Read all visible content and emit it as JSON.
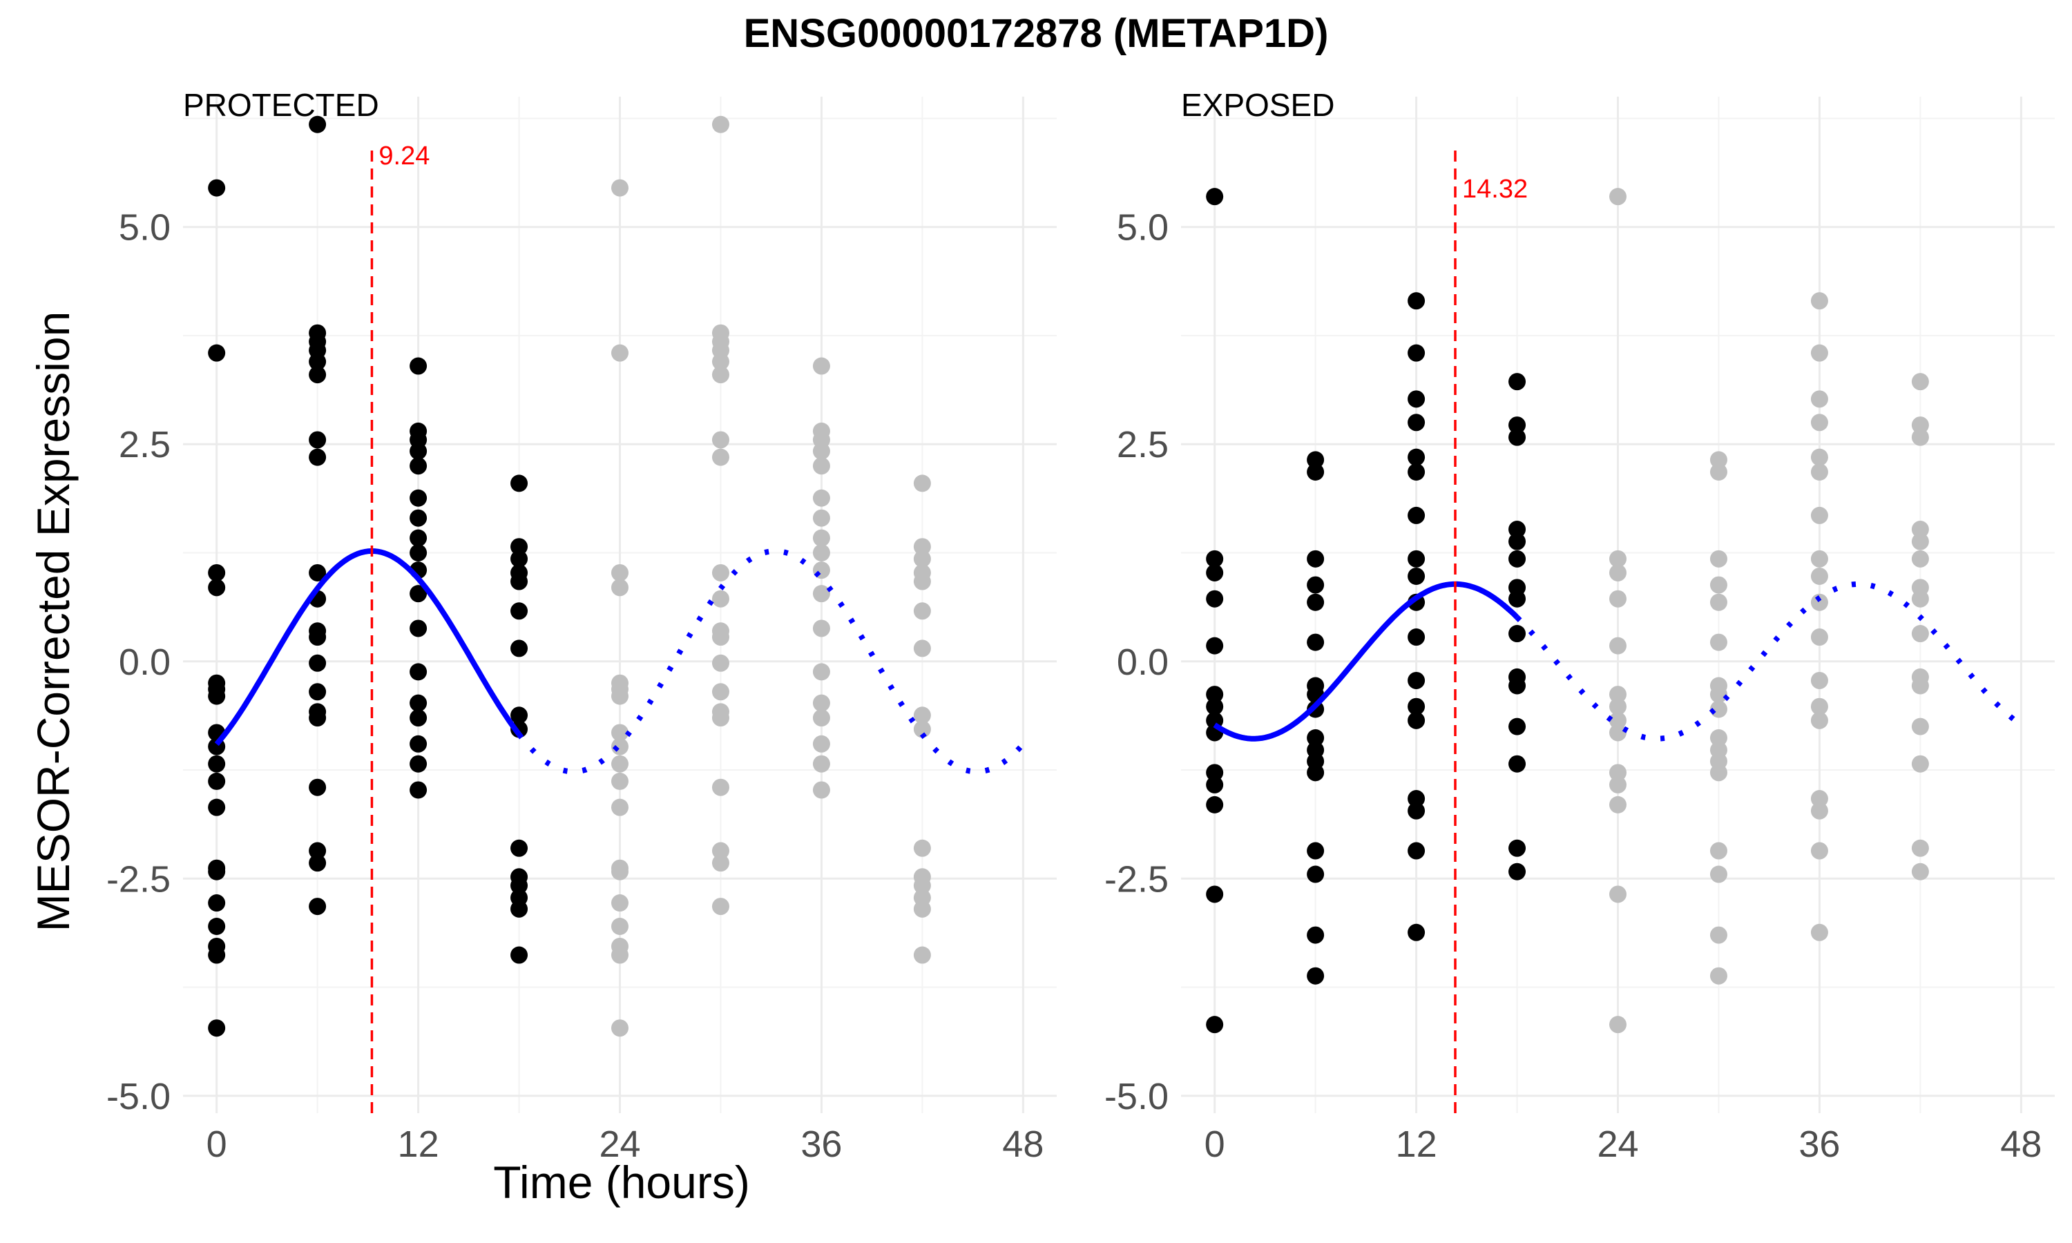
{
  "chart_data": {
    "type": "scatter",
    "title": "ENSG00000172878 (METAP1D)",
    "xlabel": "Time (hours)",
    "ylabel": "MESOR-Corrected Expression",
    "xlim": [
      -2,
      50
    ],
    "ylim": [
      -5.2,
      6.5
    ],
    "xticks": [
      0,
      12,
      24,
      36,
      48
    ],
    "xtick_labels": [
      "0",
      "12",
      "24",
      "36",
      "48"
    ],
    "yticks": [
      -5.0,
      -2.5,
      0.0,
      2.5,
      5.0
    ],
    "ytick_labels": [
      "-5.0",
      "-2.5",
      "0.0",
      "2.5",
      "5.0"
    ],
    "grid": true,
    "colors": {
      "observed_points": "#000000",
      "replicated_points": "#bebebe",
      "fit_line": "#0000ff",
      "peak_line": "#ff0000",
      "grid": "#ebebeb"
    },
    "panels": [
      {
        "name": "PROTECTED",
        "peak": 9.24,
        "peak_label": "9.24",
        "fit": {
          "mesor": 0.0,
          "amplitude": 1.27,
          "period": 24,
          "acrophase": 9.24
        },
        "points": [
          {
            "x": 0,
            "values": [
              5.45,
              3.55,
              1.02,
              0.85,
              -0.25,
              -0.32,
              -0.4,
              -0.82,
              -0.98,
              -1.18,
              -1.38,
              -1.68,
              -2.38,
              -2.42,
              -2.78,
              -3.05,
              -3.28,
              -3.38,
              -4.22
            ]
          },
          {
            "x": 6,
            "values": [
              6.18,
              3.78,
              3.68,
              3.58,
              3.45,
              3.3,
              2.55,
              2.35,
              1.02,
              0.72,
              0.35,
              0.28,
              -0.02,
              -0.35,
              -0.58,
              -0.65,
              -1.45,
              -2.18,
              -2.32,
              -2.82
            ]
          },
          {
            "x": 12,
            "values": [
              3.4,
              2.65,
              2.55,
              2.42,
              2.25,
              1.88,
              1.65,
              1.42,
              1.25,
              1.05,
              0.78,
              0.38,
              -0.12,
              -0.48,
              -0.65,
              -0.95,
              -1.18,
              -1.48
            ]
          },
          {
            "x": 18,
            "values": [
              2.05,
              1.32,
              1.18,
              1.02,
              0.92,
              0.58,
              0.15,
              -0.62,
              -0.78,
              -2.15,
              -2.48,
              -2.58,
              -2.72,
              -2.85,
              -3.38
            ]
          }
        ]
      },
      {
        "name": "EXPOSED",
        "peak": 14.32,
        "peak_label": "14.32",
        "fit": {
          "mesor": 0.0,
          "amplitude": 0.89,
          "period": 24,
          "acrophase": 14.32
        },
        "points": [
          {
            "x": 0,
            "values": [
              5.35,
              1.18,
              1.02,
              0.72,
              0.18,
              -0.38,
              -0.52,
              -0.68,
              -0.82,
              -1.28,
              -1.42,
              -1.65,
              -2.68,
              -4.18
            ]
          },
          {
            "x": 6,
            "values": [
              2.32,
              2.18,
              1.18,
              0.88,
              0.68,
              0.22,
              -0.28,
              -0.38,
              -0.55,
              -0.88,
              -1.02,
              -1.15,
              -1.28,
              -2.18,
              -2.45,
              -3.15,
              -3.62
            ]
          },
          {
            "x": 12,
            "values": [
              4.15,
              3.55,
              3.02,
              2.75,
              2.35,
              2.18,
              1.68,
              1.18,
              0.98,
              0.68,
              0.28,
              -0.22,
              -0.52,
              -0.68,
              -1.58,
              -1.72,
              -2.18,
              -3.12
            ]
          },
          {
            "x": 18,
            "values": [
              3.22,
              2.72,
              2.58,
              1.52,
              1.38,
              1.18,
              0.85,
              0.72,
              0.32,
              -0.18,
              -0.28,
              -0.75,
              -1.18,
              -2.15,
              -2.42
            ]
          }
        ]
      }
    ],
    "note_x_gt_24": "points at x + 24 repeat the 0–18 h observations in grey; fitted curve continues dotted beyond the observed range"
  }
}
